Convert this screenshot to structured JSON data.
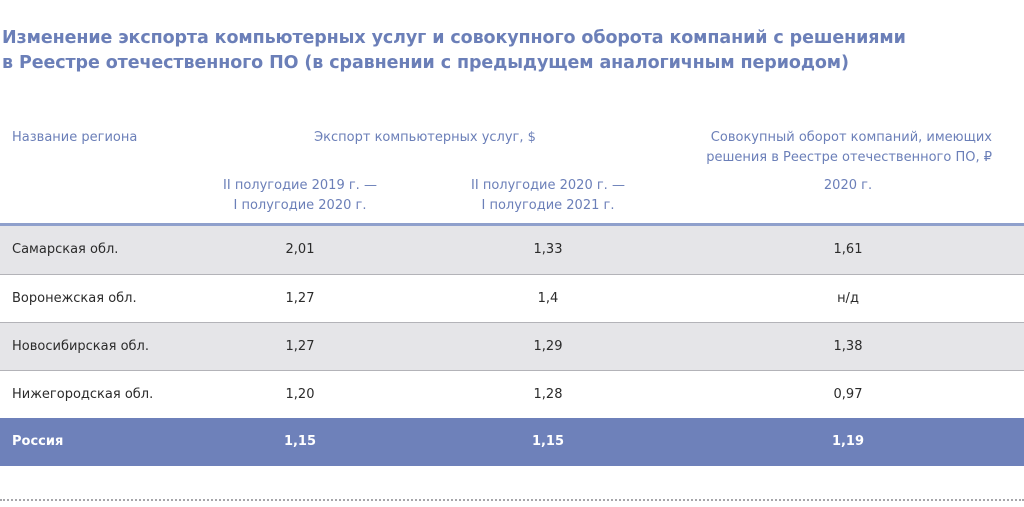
{
  "title": {
    "line1": "Изменение экспорта компьютерных услуг и совокупного оборота компаний с решениями",
    "line2": "в Реестре отечественного ПО (в сравнении с предыдущем аналогичным периодом)"
  },
  "header": {
    "region": "Название региона",
    "export_group": "Экспорт компьютерных услуг, $",
    "turnover_group_line1": "Совокупный оборот компаний, имеющих",
    "turnover_group_line2": "решения в Реестре отечественного ПО, ₽",
    "period1_line1": "II полугодие 2019 г. —",
    "period1_line2": "I полугодие 2020 г.",
    "period2_line1": "II полугодие 2020 г. —",
    "period2_line2": "I полугодие 2021 г.",
    "year": "2020 г."
  },
  "rows": [
    {
      "region": "Самарская обл.",
      "export1": "2,01",
      "export2": "1,33",
      "turnover": "1,61"
    },
    {
      "region": "Воронежская обл.",
      "export1": "1,27",
      "export2": "1,4",
      "turnover": "н/д"
    },
    {
      "region": "Новосибирская обл.",
      "export1": "1,27",
      "export2": "1,29",
      "turnover": "1,38"
    },
    {
      "region": "Нижегородская обл.",
      "export1": "1,20",
      "export2": "1,28",
      "turnover": "0,97"
    }
  ],
  "total": {
    "region": "Россия",
    "export1": "1,15",
    "export2": "1,15",
    "turnover": "1,19"
  },
  "colors": {
    "accent": "#6b7fb8",
    "total_row": "#6e81ba",
    "shaded_row": "#e5e5e8"
  }
}
